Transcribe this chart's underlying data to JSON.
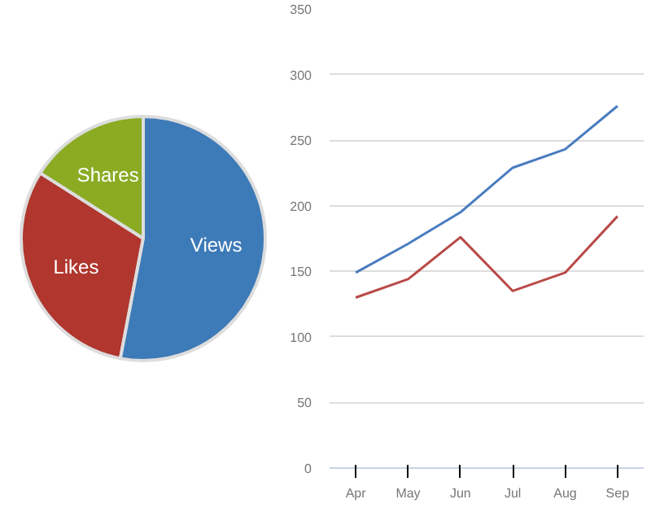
{
  "chart_data": [
    {
      "type": "pie",
      "categories": [
        "Shares",
        "Likes",
        "Views"
      ],
      "values": [
        16,
        31,
        53
      ],
      "colors": [
        "#8aab22",
        "#b0362e",
        "#3d7ab8"
      ]
    },
    {
      "type": "line",
      "categories": [
        "Apr",
        "May",
        "Jun",
        "Jul",
        "Aug",
        "Sep"
      ],
      "series": [
        {
          "color": "#4a7cc0",
          "values": [
            149,
            171,
            195,
            229,
            243,
            276
          ]
        },
        {
          "color": "#b84a48",
          "values": [
            130,
            144,
            176,
            135,
            149,
            192
          ]
        }
      ],
      "ylim": [
        0,
        350
      ],
      "yticks": [
        0,
        50,
        100,
        150,
        200,
        250,
        300,
        350
      ],
      "grid": "y"
    }
  ]
}
